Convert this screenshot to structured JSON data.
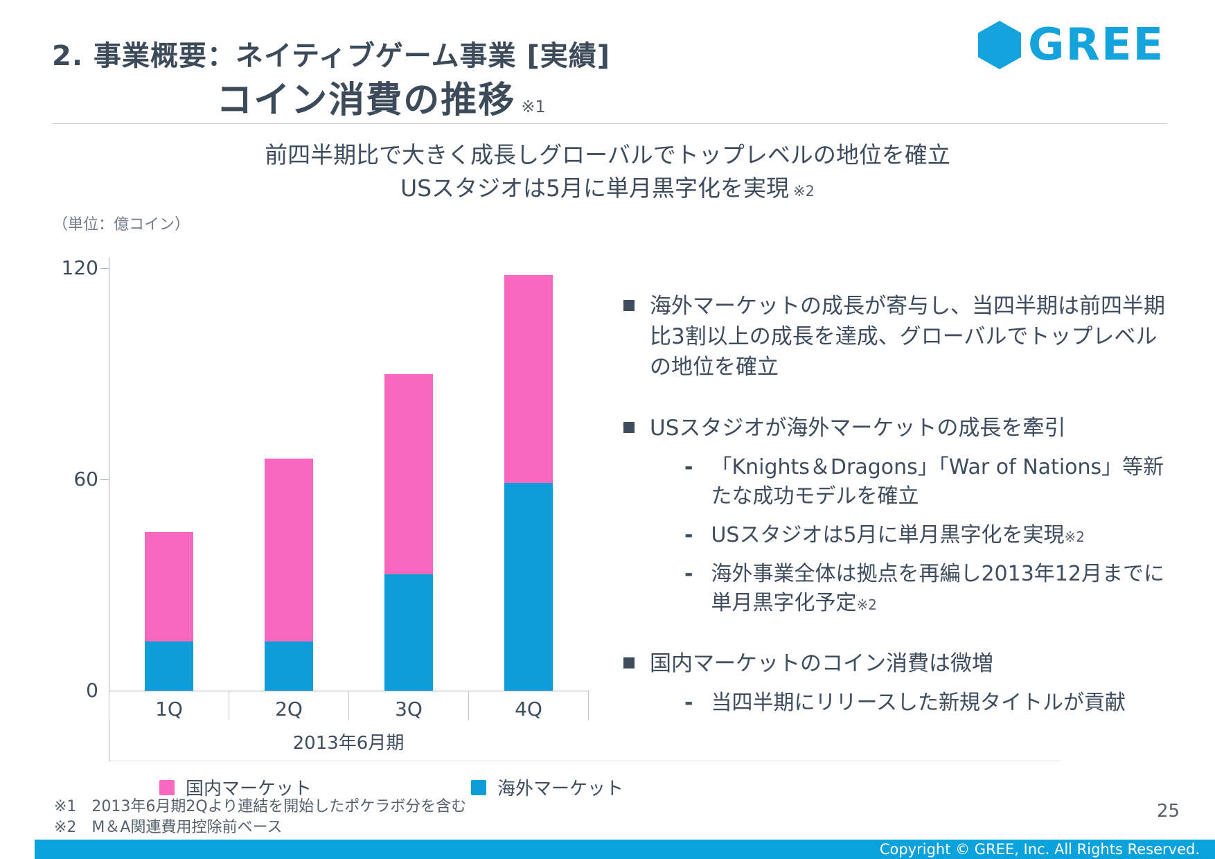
{
  "header": {
    "section_title": "2. 事業概要：ネイティブゲーム事業 [実績]",
    "page_title": "コイン消費の推移",
    "page_title_note": "※1",
    "logo_text": "GREE"
  },
  "subtitle": {
    "line1": "前四半期比で大きく成長しグローバルでトップレベルの地位を確立",
    "line2": "USスタジオは5月に単月黒字化を実現",
    "line2_note": "※2"
  },
  "chart_data": {
    "type": "bar",
    "stacked": true,
    "title": "コイン消費の推移",
    "unit_label": "（単位：億コイン）",
    "categories": [
      "1Q",
      "2Q",
      "3Q",
      "4Q"
    ],
    "x_group_label": "2013年6月期",
    "y_ticks": [
      "0",
      "60",
      "120"
    ],
    "ylim": [
      0,
      120
    ],
    "grid": false,
    "legend_position": "bottom",
    "series": [
      {
        "name": "海外マーケット",
        "color": "#0d9ed9",
        "values": [
          14,
          14,
          33,
          59
        ]
      },
      {
        "name": "国内マーケット",
        "color": "#f768be",
        "values": [
          31,
          52,
          57,
          59
        ]
      }
    ],
    "totals": [
      45,
      66,
      90,
      118
    ],
    "legend": [
      {
        "label": "国内マーケット",
        "color": "#f768be"
      },
      {
        "label": "海外マーケット",
        "color": "#0d9ed9"
      }
    ]
  },
  "bullets": {
    "b1": "海外マーケットの成長が寄与し、当四半期は前四半期比3割以上の成長を達成、グローバルでトップレベルの地位を確立",
    "b2": "USスタジオが海外マーケットの成長を牽引",
    "b2_sub": [
      {
        "text": "「Knights＆Dragons」「War of Nations」等新たな成功モデルを確立",
        "note": ""
      },
      {
        "text": "USスタジオは5月に単月黒字化を実現",
        "note": "※2"
      },
      {
        "text": "海外事業全体は拠点を再編し2013年12月までに単月黒字化予定",
        "note": "※2"
      }
    ],
    "b3": "国内マーケットのコイン消費は微増",
    "b3_sub": [
      {
        "text": "当四半期にリリースした新規タイトルが貢献",
        "note": ""
      }
    ]
  },
  "footnotes": {
    "n1": "※1　2013年6月期2Qより連結を開始したポケラボ分を含む",
    "n2": "※2　M＆A関連費用控除前ベース"
  },
  "footer": {
    "page_number": "25",
    "copyright": "Copyright © GREE, Inc. All Rights Reserved."
  }
}
